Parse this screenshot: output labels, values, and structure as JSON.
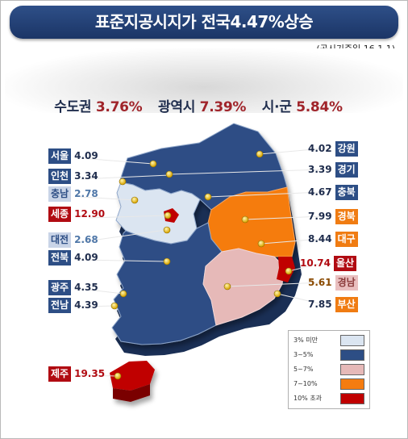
{
  "title": "표준지공시지가 전국4.47%상승",
  "reference_date": "(공시기준일 16.1.1)",
  "summary": {
    "capital": {
      "label": "수도권",
      "value": "3.76%"
    },
    "metro": {
      "label": "광역시",
      "value": "7.39%"
    },
    "city": {
      "label": "시·군",
      "value": "5.84%"
    }
  },
  "regions": [
    {
      "name": "서울",
      "value": "4.09"
    },
    {
      "name": "인천",
      "value": "3.34"
    },
    {
      "name": "충남",
      "value": "2.78"
    },
    {
      "name": "세종",
      "value": "12.90"
    },
    {
      "name": "대전",
      "value": "2.68"
    },
    {
      "name": "전북",
      "value": "4.09"
    },
    {
      "name": "광주",
      "value": "4.35"
    },
    {
      "name": "전남",
      "value": "4.39"
    },
    {
      "name": "제주",
      "value": "19.35"
    },
    {
      "name": "강원",
      "value": "4.02"
    },
    {
      "name": "경기",
      "value": "3.39"
    },
    {
      "name": "충북",
      "value": "4.67"
    },
    {
      "name": "경북",
      "value": "7.99"
    },
    {
      "name": "대구",
      "value": "8.44"
    },
    {
      "name": "울산",
      "value": "10.74"
    },
    {
      "name": "경남",
      "value": "5.61"
    },
    {
      "name": "부산",
      "value": "7.85"
    }
  ],
  "legend": [
    {
      "label": "3% 미만",
      "color": "#dbe5f1"
    },
    {
      "label": "3~5%",
      "color": "#2d4e85"
    },
    {
      "label": "5~7%",
      "color": "#e6b9b8"
    },
    {
      "label": "7~10%",
      "color": "#f57c10"
    },
    {
      "label": "10% 초과",
      "color": "#c00000"
    }
  ]
}
